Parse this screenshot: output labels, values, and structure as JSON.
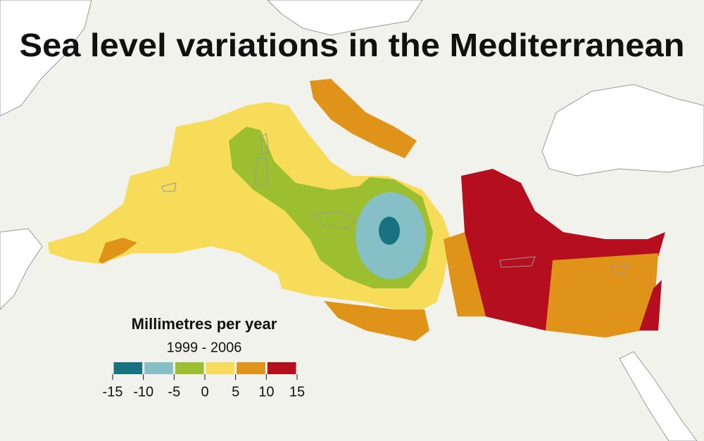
{
  "title": "Sea level variations in the Mediterranean",
  "legend": {
    "title": "Millimetres per year",
    "period": "1999 - 2006",
    "ticks": [
      -15,
      -10,
      -5,
      0,
      5,
      10,
      15
    ],
    "colors": [
      "#17737f",
      "#86c0c6",
      "#9cbf2f",
      "#f7dc5a",
      "#e09319",
      "#b50e1f"
    ]
  }
}
